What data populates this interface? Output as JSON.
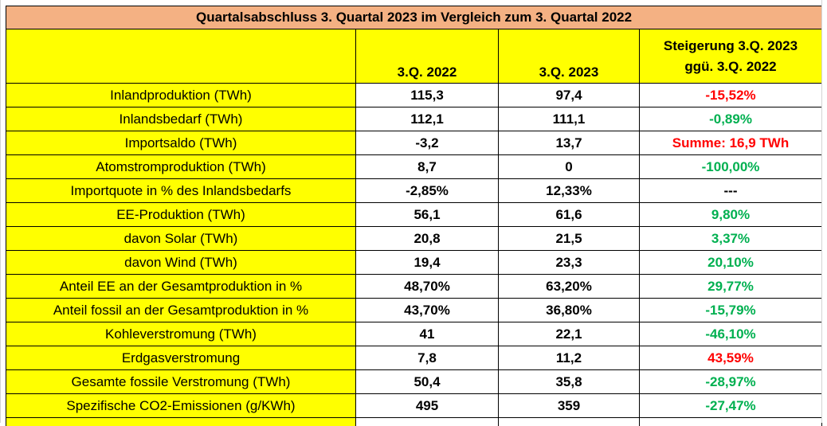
{
  "colors": {
    "title_bg": "#f4b183",
    "yellow_bg": "#ffff00",
    "white_bg": "#ffffff",
    "negative_red": "#ff0000",
    "positive_green": "#00b050",
    "neutral_black": "#000000"
  },
  "table": {
    "title": "Quartalsabschluss 3. Quartal 2023 im Vergleich zum 3. Quartal 2022",
    "headers": {
      "label": "",
      "q2022": "3.Q. 2022",
      "q2023": "3.Q. 2023",
      "change_line1": "Steigerung 3.Q. 2023",
      "change_line2": "ggü. 3.Q. 2022"
    },
    "rows": [
      {
        "label": "Inlandproduktion  (TWh)",
        "q2022": "115,3",
        "q2023": "97,4",
        "change": "-15,52%",
        "change_color": "#ff0000"
      },
      {
        "label": "Inlandsbedarf (TWh)",
        "q2022": "112,1",
        "q2023": "111,1",
        "change": "-0,89%",
        "change_color": "#00b050"
      },
      {
        "label": "Importsaldo (TWh)",
        "q2022": "-3,2",
        "q2023": "13,7",
        "change": "Summe: 16,9 TWh",
        "change_color": "#ff0000"
      },
      {
        "label": "Atomstromproduktion (TWh)",
        "q2022": "8,7",
        "q2023": "0",
        "change": "-100,00%",
        "change_color": "#00b050"
      },
      {
        "label": "Importquote in % des Inlandsbedarfs",
        "q2022": "-2,85%",
        "q2023": "12,33%",
        "change": "---",
        "change_color": "#000000"
      },
      {
        "label": "EE-Produktion (TWh)",
        "q2022": "56,1",
        "q2023": "61,6",
        "change": "9,80%",
        "change_color": "#00b050"
      },
      {
        "label": "davon Solar (TWh)",
        "q2022": "20,8",
        "q2023": "21,5",
        "change": "3,37%",
        "change_color": "#00b050"
      },
      {
        "label": "davon Wind (TWh)",
        "q2022": "19,4",
        "q2023": "23,3",
        "change": "20,10%",
        "change_color": "#00b050"
      },
      {
        "label": "Anteil EE an der Gesamtproduktion in %",
        "q2022": "48,70%",
        "q2023": "63,20%",
        "change": "29,77%",
        "change_color": "#00b050"
      },
      {
        "label": "Anteil fossil an der Gesamtproduktion in %",
        "q2022": "43,70%",
        "q2023": "36,80%",
        "change": "-15,79%",
        "change_color": "#00b050"
      },
      {
        "label": "Kohleverstromung (TWh)",
        "q2022": "41",
        "q2023": "22,1",
        "change": "-46,10%",
        "change_color": "#00b050"
      },
      {
        "label": "Erdgasverstromung",
        "q2022": "7,8",
        "q2023": "11,2",
        "change": "43,59%",
        "change_color": "#ff0000"
      },
      {
        "label": "Gesamte fossile Verstromung (TWh)",
        "q2022": "50,4",
        "q2023": "35,8",
        "change": "-28,97%",
        "change_color": "#00b050"
      },
      {
        "label": "Spezifische CO2-Emissionen (g/KWh)",
        "q2022": "495",
        "q2023": "359",
        "change": "-27,47%",
        "change_color": "#00b050"
      }
    ]
  }
}
